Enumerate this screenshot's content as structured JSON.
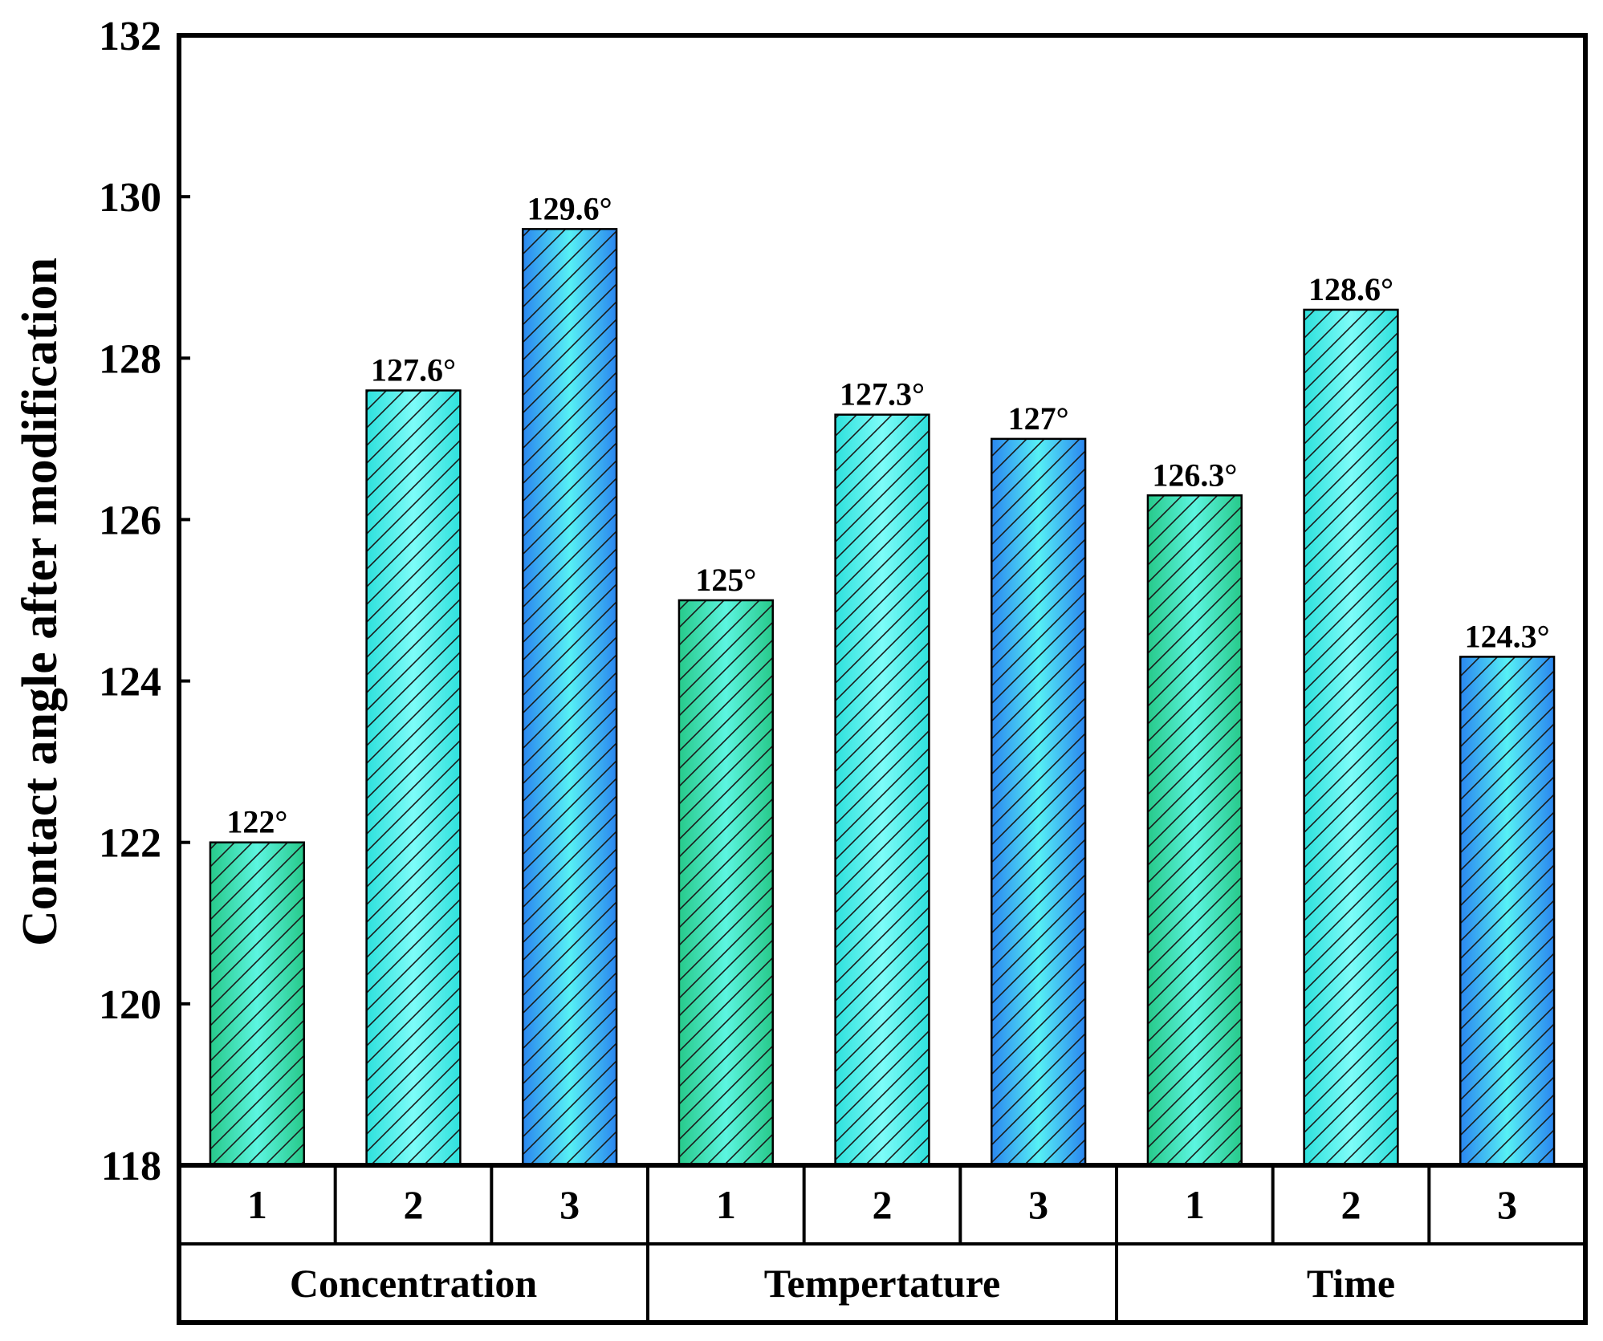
{
  "chart_data": {
    "type": "bar",
    "ylabel": "Contact angle after modification",
    "ylim": [
      118,
      132
    ],
    "yticks": [
      118,
      120,
      122,
      124,
      126,
      128,
      130,
      132
    ],
    "grid": false,
    "groups": [
      {
        "name": "Concentration",
        "bars": [
          {
            "category": "1",
            "value": 122,
            "label": "122°",
            "style": "green"
          },
          {
            "category": "2",
            "value": 127.6,
            "label": "127.6°",
            "style": "cyan"
          },
          {
            "category": "3",
            "value": 129.6,
            "label": "129.6°",
            "style": "blue"
          }
        ]
      },
      {
        "name": "Tempertature",
        "bars": [
          {
            "category": "1",
            "value": 125,
            "label": "125°",
            "style": "green"
          },
          {
            "category": "2",
            "value": 127.3,
            "label": "127.3°",
            "style": "cyan"
          },
          {
            "category": "3",
            "value": 127,
            "label": "127°",
            "style": "blue"
          }
        ]
      },
      {
        "name": "Time",
        "bars": [
          {
            "category": "1",
            "value": 126.3,
            "label": "126.3°",
            "style": "green"
          },
          {
            "category": "2",
            "value": 128.6,
            "label": "128.6°",
            "style": "cyan"
          },
          {
            "category": "3",
            "value": 124.3,
            "label": "124.3°",
            "style": "blue"
          }
        ]
      }
    ],
    "colors": {
      "green": [
        "#27c98a",
        "#5cf5e0",
        "#27c98a"
      ],
      "cyan": [
        "#2ee0dc",
        "#7dfcf8",
        "#2ee0dc"
      ],
      "blue": [
        "#2a86ef",
        "#57f0f5",
        "#2a86ef"
      ],
      "hatch": "#1a1a1a",
      "outline": "#000000"
    }
  }
}
